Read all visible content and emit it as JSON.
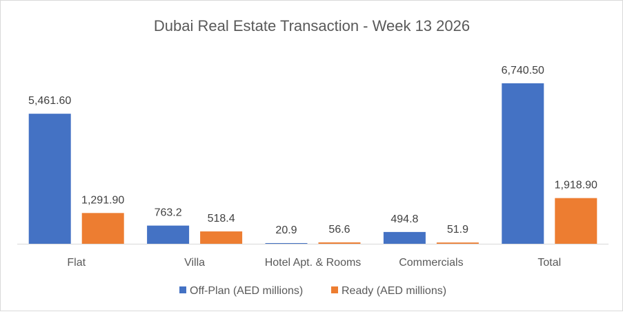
{
  "chart_data": {
    "type": "bar",
    "title": "Dubai Real Estate Transaction - Week 13 2026",
    "xlabel": "",
    "ylabel": "",
    "categories": [
      "Flat",
      "Villa",
      "Hotel Apt. & Rooms",
      "Commercials",
      "Total"
    ],
    "series": [
      {
        "name": "Off-Plan (AED millions)",
        "color": "#4472C4",
        "values": [
          5461.6,
          763.2,
          20.9,
          494.8,
          6740.5
        ],
        "labels": [
          "5,461.60",
          "763.2",
          "20.9",
          "494.8",
          "6,740.50"
        ]
      },
      {
        "name": "Ready (AED millions)",
        "color": "#ED7D31",
        "values": [
          1291.9,
          518.4,
          56.6,
          51.9,
          1918.9
        ],
        "labels": [
          "1,291.90",
          "518.4",
          "56.6",
          "51.9",
          "1,918.90"
        ]
      }
    ],
    "ylim": [
      0,
      8000
    ],
    "grid": false,
    "y_axis_visible": false,
    "legend": "bottom"
  }
}
